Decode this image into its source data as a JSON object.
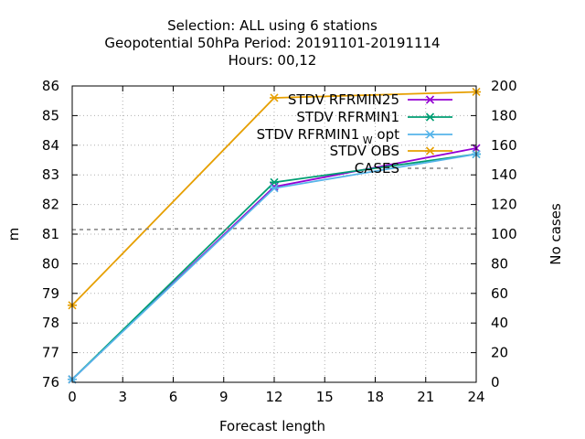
{
  "chart_data": {
    "type": "line",
    "title_lines": [
      "Selection: ALL using     6 stations",
      "Geopotential 50hPa   Period: 20191101-20191114",
      "Hours:  00,12"
    ],
    "xlabel": "Forecast length",
    "ylabel": "m",
    "y2label": "No cases",
    "xlim": [
      0,
      24
    ],
    "ylim": [
      76,
      86
    ],
    "y2lim": [
      0,
      200
    ],
    "xticks": [
      "0",
      "3",
      "6",
      "9",
      "12",
      "15",
      "18",
      "21",
      "24"
    ],
    "yticks": [
      "76",
      "77",
      "78",
      "79",
      "80",
      "81",
      "82",
      "83",
      "84",
      "85",
      "86"
    ],
    "y2ticks": [
      "0",
      "20",
      "40",
      "60",
      "80",
      "100",
      "120",
      "140",
      "160",
      "180",
      "200"
    ],
    "grid": true,
    "legend_position": "top-right",
    "x": [
      0,
      12,
      24
    ],
    "series": [
      {
        "name": "STDV RFRMIN25",
        "color": "#9400d3",
        "marker": "x",
        "values": [
          76.1,
          82.6,
          83.9
        ]
      },
      {
        "name": "STDV RFRMIN1",
        "color": "#009e73",
        "marker": "asterisk",
        "values": [
          76.1,
          82.75,
          83.7
        ]
      },
      {
        "name": "STDV RFRMIN1",
        "name_subscript": "W",
        "name_suffix": " opt",
        "color": "#56b4e9",
        "marker": "asterisk",
        "values": [
          76.1,
          82.55,
          83.7
        ]
      },
      {
        "name": "STDV OBS",
        "color": "#e69f00",
        "marker": "asterisk",
        "values": [
          78.6,
          85.6,
          85.8
        ]
      },
      {
        "name": "CASES",
        "color": "#808080",
        "dashed": true,
        "axis": "y2",
        "values": [
          103,
          104,
          104
        ]
      }
    ]
  }
}
